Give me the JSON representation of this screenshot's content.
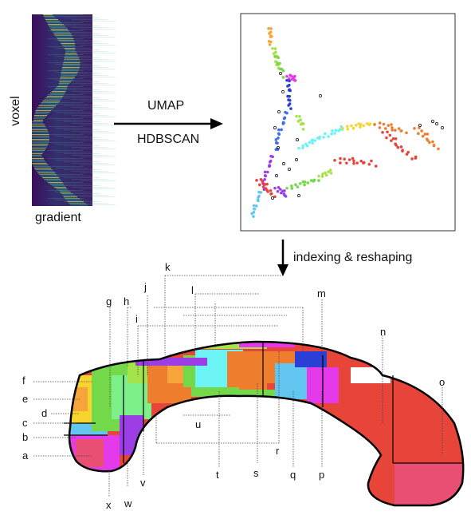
{
  "heatmap": {
    "ylabel": "voxel",
    "xlabel": "gradient"
  },
  "pipeline": {
    "step1": "UMAP",
    "step2": "HDBSCAN",
    "step3": "indexing & reshaping"
  },
  "region_labels": [
    "a",
    "b",
    "c",
    "d",
    "e",
    "f",
    "g",
    "h",
    "i",
    "j",
    "k",
    "l",
    "m",
    "n",
    "o",
    "p",
    "q",
    "r",
    "s",
    "t",
    "u",
    "v",
    "w",
    "x"
  ],
  "colors": {
    "red": "#e8453a",
    "orange": "#ee7d2e",
    "lightorange": "#f6a53b",
    "yellow": "#f7d52e",
    "lime": "#a5e34a",
    "green": "#74d94a",
    "mint": "#7ef08a",
    "cyan": "#6cf3f6",
    "sky": "#63c6f1",
    "blue": "#3c6ee8",
    "navy": "#2b3ed6",
    "purple": "#9b3ee6",
    "magenta": "#e43ae9",
    "pink": "#e84f73"
  }
}
